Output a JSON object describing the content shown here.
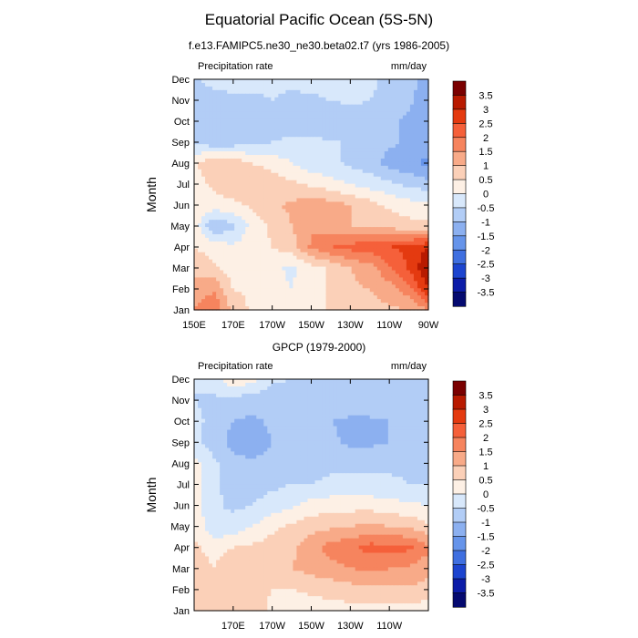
{
  "title": "Equatorial Pacific Ocean (5S-5N)",
  "colorbar": {
    "levels": [
      "3.5",
      "3",
      "2.5",
      "2",
      "1.5",
      "1",
      "0.5",
      "0",
      "-0.5",
      "-1",
      "-1.5",
      "-2",
      "-2.5",
      "-3",
      "-3.5"
    ],
    "colors": [
      "#7a0000",
      "#b81a00",
      "#e43a10",
      "#f5603a",
      "#f6845e",
      "#f8aa88",
      "#fbd0b8",
      "#fdf0e5",
      "#d8e8fb",
      "#b2cdf6",
      "#8cb0f0",
      "#6694ea",
      "#3f6fe0",
      "#1c44cf",
      "#0c1ca8",
      "#050a70"
    ]
  },
  "chart_data": [
    {
      "type": "heatmap",
      "title": "f.e13.FAMIPC5.ne30_ne30.beta02.t7 (yrs 1986-2005)",
      "left_label": "Precipitation rate",
      "right_label": "mm/day",
      "ylabel": "Month",
      "xlabel": "",
      "x_ticks": [
        "150E",
        "170E",
        "170W",
        "150W",
        "130W",
        "110W",
        "90W"
      ],
      "y_ticks": [
        "Jan",
        "Feb",
        "Mar",
        "Apr",
        "May",
        "Jun",
        "Jul",
        "Aug",
        "Sep",
        "Oct",
        "Nov",
        "Dec"
      ],
      "grid": false,
      "legend": "right",
      "longitudes": [
        150,
        160,
        170,
        180,
        190,
        200,
        210,
        220,
        230,
        240,
        250,
        260,
        270
      ],
      "values": [
        [
          1.5,
          2.0,
          0.8,
          0.4,
          0.3,
          0.0,
          0.3,
          0.6,
          0.8,
          0.8,
          0.9,
          1.0,
          1.5
        ],
        [
          1.2,
          1.4,
          0.5,
          0.4,
          0.2,
          0.0,
          0.3,
          0.6,
          0.9,
          1.0,
          1.3,
          1.8,
          3.0
        ],
        [
          0.8,
          0.6,
          0.2,
          0.3,
          0.1,
          -0.1,
          0.3,
          0.6,
          1.0,
          1.3,
          1.9,
          2.6,
          3.5
        ],
        [
          0.5,
          0.3,
          0.1,
          0.3,
          0.5,
          0.8,
          1.6,
          2.0,
          2.2,
          2.3,
          2.5,
          2.6,
          3.0
        ],
        [
          0.3,
          -1.0,
          -0.6,
          0.2,
          0.6,
          1.0,
          1.4,
          1.2,
          1.0,
          0.9,
          0.8,
          0.7,
          0.6
        ],
        [
          0.5,
          0.3,
          0.4,
          0.6,
          0.9,
          1.1,
          1.3,
          1.2,
          1.0,
          0.7,
          0.4,
          0.2,
          0.1
        ],
        [
          0.3,
          0.6,
          0.8,
          0.9,
          0.8,
          0.6,
          0.4,
          0.2,
          0.0,
          -0.2,
          -0.4,
          -0.6,
          -0.8
        ],
        [
          0.4,
          0.9,
          0.8,
          0.5,
          0.3,
          0.0,
          -0.3,
          -0.4,
          -0.6,
          -0.8,
          -1.2,
          -1.4,
          -1.6
        ],
        [
          -0.5,
          -0.9,
          -0.8,
          -0.6,
          -0.5,
          -0.4,
          -0.3,
          -0.5,
          -0.5,
          -0.6,
          -0.9,
          -1.1,
          -1.3
        ],
        [
          -0.6,
          -1.0,
          -0.8,
          -0.7,
          -0.6,
          -0.9,
          -1.0,
          -1.0,
          -0.9,
          -0.8,
          -0.9,
          -1.1,
          -1.5
        ],
        [
          -0.8,
          -0.9,
          -0.7,
          -0.6,
          -0.5,
          -0.6,
          -0.6,
          -0.5,
          -0.4,
          -0.5,
          -0.7,
          -0.9,
          -1.4
        ],
        [
          -0.6,
          -0.2,
          0.0,
          -0.3,
          -0.4,
          -0.4,
          -0.3,
          -0.2,
          -0.3,
          -0.4,
          -0.6,
          -0.8,
          -1.2
        ]
      ]
    },
    {
      "type": "heatmap",
      "title": "GPCP (1979-2000)",
      "left_label": "Precipitation rate",
      "right_label": "mm/day",
      "ylabel": "Month",
      "xlabel": "",
      "x_ticks": [
        "170E",
        "170W",
        "150W",
        "130W",
        "110W"
      ],
      "y_ticks": [
        "Jan",
        "Feb",
        "Mar",
        "Apr",
        "May",
        "Jun",
        "Jul",
        "Aug",
        "Sep",
        "Oct",
        "Nov",
        "Dec"
      ],
      "grid": false,
      "legend": "right",
      "longitudes": [
        150,
        160,
        170,
        180,
        190,
        200,
        210,
        220,
        230,
        240,
        250,
        260,
        270
      ],
      "values": [
        [
          0.6,
          0.5,
          0.8,
          0.9,
          0.3,
          0.2,
          0.2,
          0.3,
          0.3,
          0.3,
          0.3,
          0.3,
          0.2
        ],
        [
          0.8,
          0.6,
          1.0,
          0.9,
          0.5,
          0.5,
          0.6,
          0.7,
          0.8,
          0.9,
          0.9,
          0.9,
          0.8
        ],
        [
          0.8,
          0.5,
          0.9,
          1.0,
          0.9,
          1.0,
          1.2,
          1.3,
          1.5,
          1.6,
          1.5,
          1.4,
          1.2
        ],
        [
          0.6,
          0.3,
          0.5,
          0.6,
          0.7,
          0.9,
          1.3,
          1.7,
          1.9,
          2.2,
          2.2,
          2.1,
          1.6
        ],
        [
          0.4,
          -0.4,
          -0.3,
          0.0,
          0.4,
          0.6,
          0.8,
          0.9,
          1.0,
          1.1,
          1.0,
          0.9,
          0.6
        ],
        [
          0.3,
          -0.4,
          -0.6,
          -0.5,
          -0.3,
          -0.1,
          0.2,
          0.3,
          0.3,
          0.3,
          0.2,
          0.1,
          0.0
        ],
        [
          0.2,
          -0.4,
          -0.7,
          -0.7,
          -0.6,
          -0.5,
          -0.5,
          -0.4,
          -0.4,
          -0.4,
          -0.4,
          -0.5,
          -0.5
        ],
        [
          0.2,
          -0.4,
          -0.8,
          -0.9,
          -0.8,
          -0.7,
          -0.7,
          -0.6,
          -0.6,
          -0.6,
          -0.6,
          -0.6,
          -0.6
        ],
        [
          -0.4,
          -0.7,
          -1.2,
          -1.4,
          -1.0,
          -0.8,
          -0.8,
          -0.9,
          -1.1,
          -1.1,
          -1.0,
          -0.8,
          -0.6
        ],
        [
          -0.4,
          -0.6,
          -1.0,
          -1.1,
          -0.9,
          -0.8,
          -0.8,
          -1.0,
          -1.1,
          -1.1,
          -1.0,
          -0.9,
          -0.7
        ],
        [
          -0.5,
          -0.6,
          -0.7,
          -0.8,
          -0.8,
          -0.8,
          -0.8,
          -0.7,
          -0.6,
          -0.6,
          -0.6,
          -0.6,
          -0.5
        ],
        [
          -0.5,
          -0.2,
          0.4,
          0.2,
          -0.4,
          -0.5,
          -0.5,
          -0.5,
          -0.5,
          -0.5,
          -0.5,
          -0.5,
          -0.5
        ]
      ]
    }
  ]
}
